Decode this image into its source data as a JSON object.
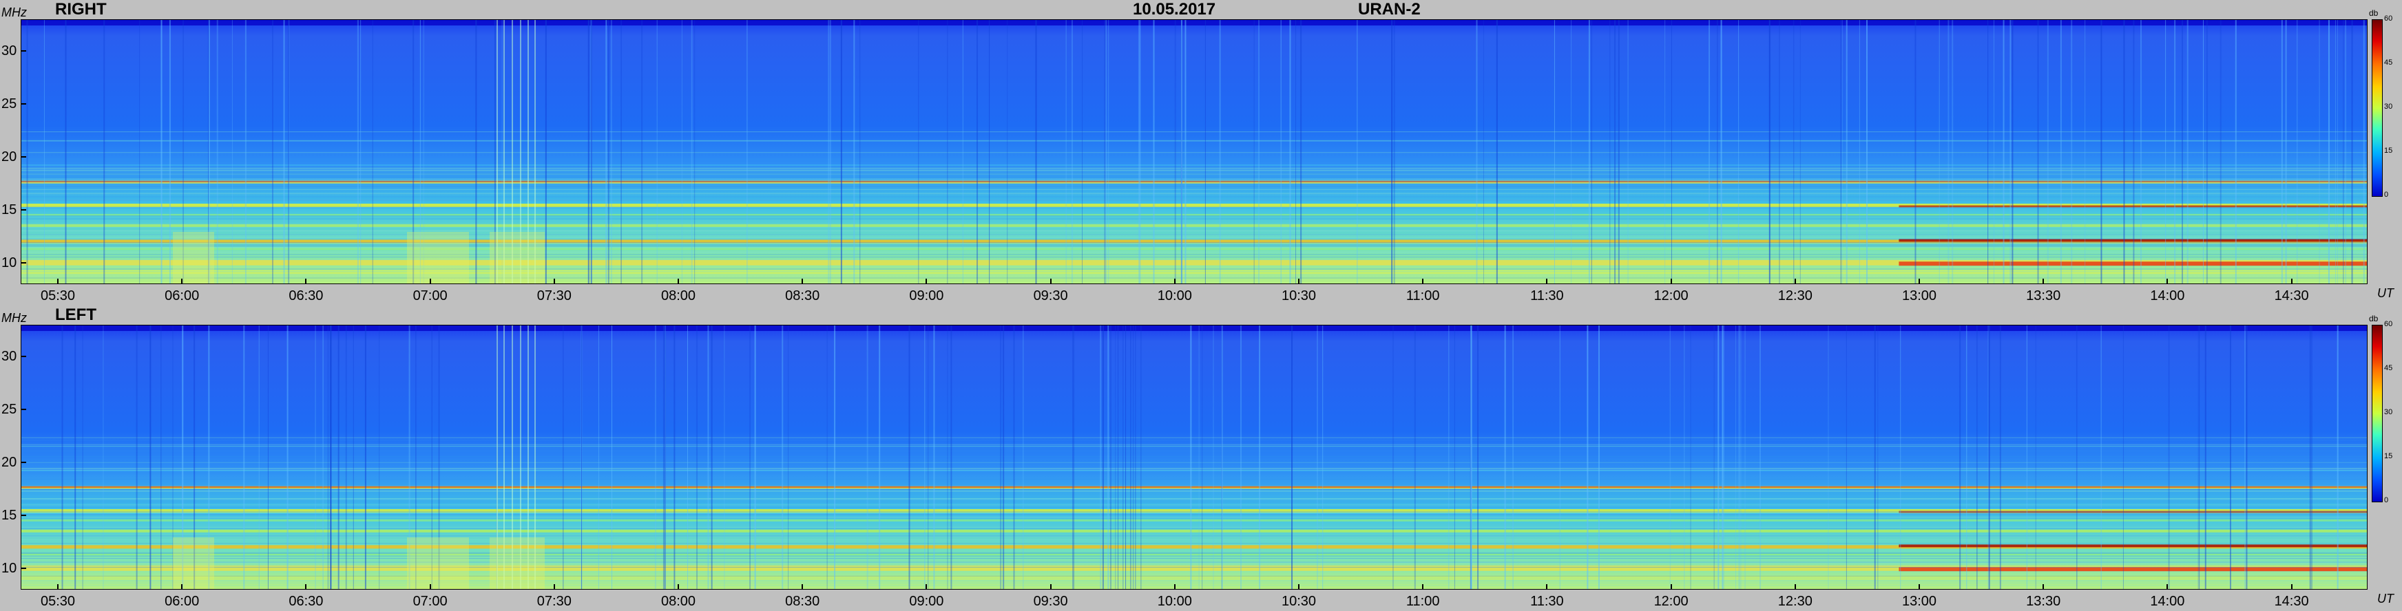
{
  "header": {
    "date": "10.05.2017",
    "station": "URAN-2"
  },
  "units": {
    "y": "MHz",
    "x": "UT",
    "colorbar": "db"
  },
  "panels": [
    {
      "label": "RIGHT"
    },
    {
      "label": "LEFT"
    }
  ],
  "chart_data": [
    {
      "type": "heatmap",
      "title": "RIGHT",
      "xlabel": "UT",
      "ylabel": "MHz",
      "x_ticks": [
        "05:30",
        "06:00",
        "06:30",
        "07:00",
        "07:30",
        "08:00",
        "08:30",
        "09:00",
        "09:30",
        "10:00",
        "10:30",
        "11:00",
        "11:30",
        "12:00",
        "12:30",
        "13:00",
        "13:30",
        "14:00",
        "14:30"
      ],
      "y_ticks": [
        "10",
        "15",
        "20",
        "25",
        "30"
      ],
      "ylim": [
        8,
        33
      ],
      "colorbar": {
        "label": "db",
        "ticks": [
          "0",
          "15",
          "30",
          "45",
          "60"
        ],
        "range": [
          0,
          60
        ]
      }
    },
    {
      "type": "heatmap",
      "title": "LEFT",
      "xlabel": "UT",
      "ylabel": "MHz",
      "x_ticks": [
        "05:30",
        "06:00",
        "06:30",
        "07:00",
        "07:30",
        "08:00",
        "08:30",
        "09:00",
        "09:30",
        "10:00",
        "10:30",
        "11:00",
        "11:30",
        "12:00",
        "12:30",
        "13:00",
        "13:30",
        "14:00",
        "14:30"
      ],
      "y_ticks": [
        "10",
        "15",
        "20",
        "25",
        "30"
      ],
      "ylim": [
        8,
        33
      ],
      "colorbar": {
        "label": "db",
        "ticks": [
          "0",
          "15",
          "30",
          "45",
          "60"
        ],
        "range": [
          0,
          60
        ]
      }
    }
  ]
}
